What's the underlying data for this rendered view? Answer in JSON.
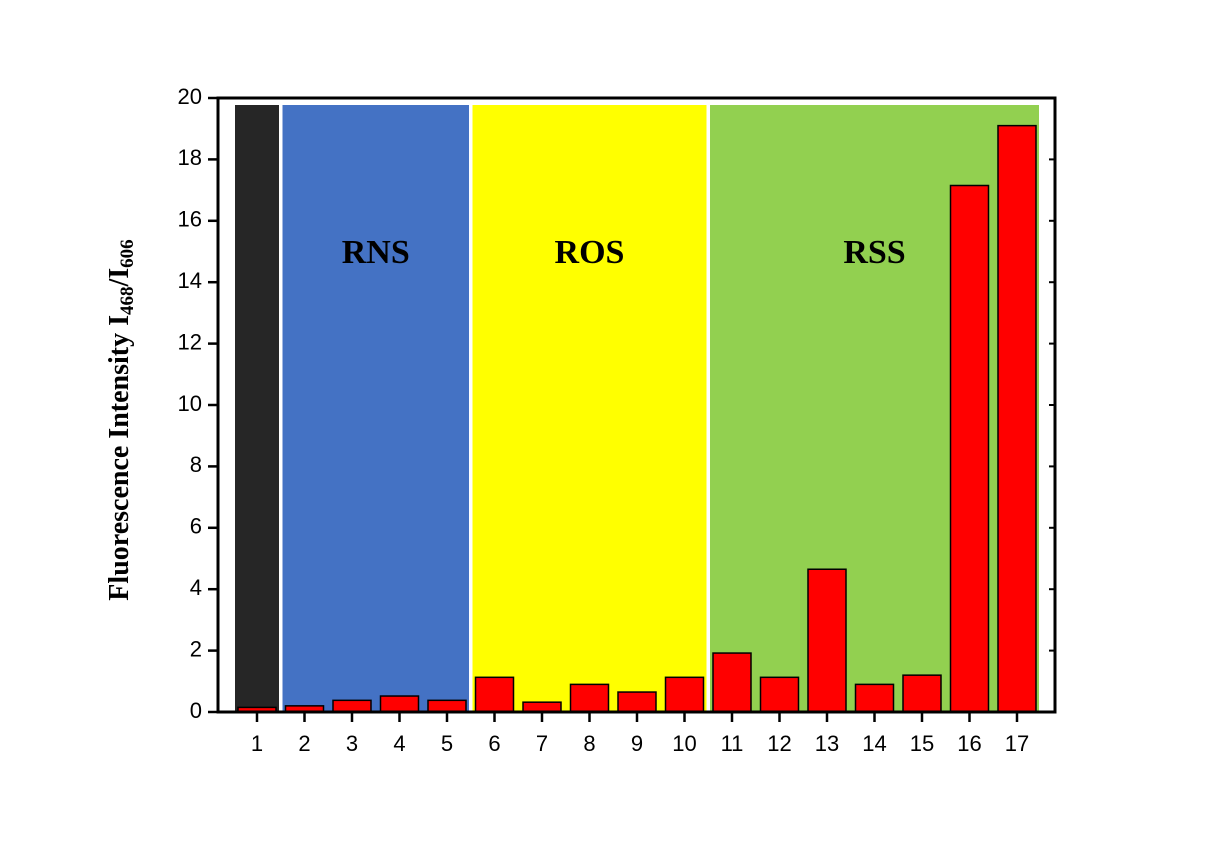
{
  "chart_data": {
    "type": "bar",
    "ylabel": [
      "Fluorescence Intensity  I",
      "468",
      "/I",
      "606"
    ],
    "categories": [
      "1",
      "2",
      "3",
      "4",
      "5",
      "6",
      "7",
      "8",
      "9",
      "10",
      "11",
      "12",
      "13",
      "14",
      "15",
      "16",
      "17"
    ],
    "values": [
      0.15,
      0.2,
      0.38,
      0.52,
      0.38,
      1.13,
      0.32,
      0.9,
      0.65,
      1.13,
      1.92,
      1.13,
      4.65,
      0.9,
      1.2,
      17.15,
      19.1
    ],
    "color": "#ff0000",
    "ylim": [
      0,
      20
    ],
    "yticks": [
      0,
      2,
      4,
      6,
      8,
      10,
      12,
      14,
      16,
      18,
      20
    ],
    "regions": [
      {
        "start": 0,
        "end": 0,
        "color": "#262626"
      },
      {
        "label": "RNS",
        "start": 1,
        "end": 4,
        "color": "#4472c4"
      },
      {
        "label": "ROS",
        "start": 5,
        "end": 9,
        "color": "#ffff00"
      },
      {
        "label": "RSS",
        "start": 10,
        "end": 16,
        "color": "#92d050"
      }
    ]
  }
}
